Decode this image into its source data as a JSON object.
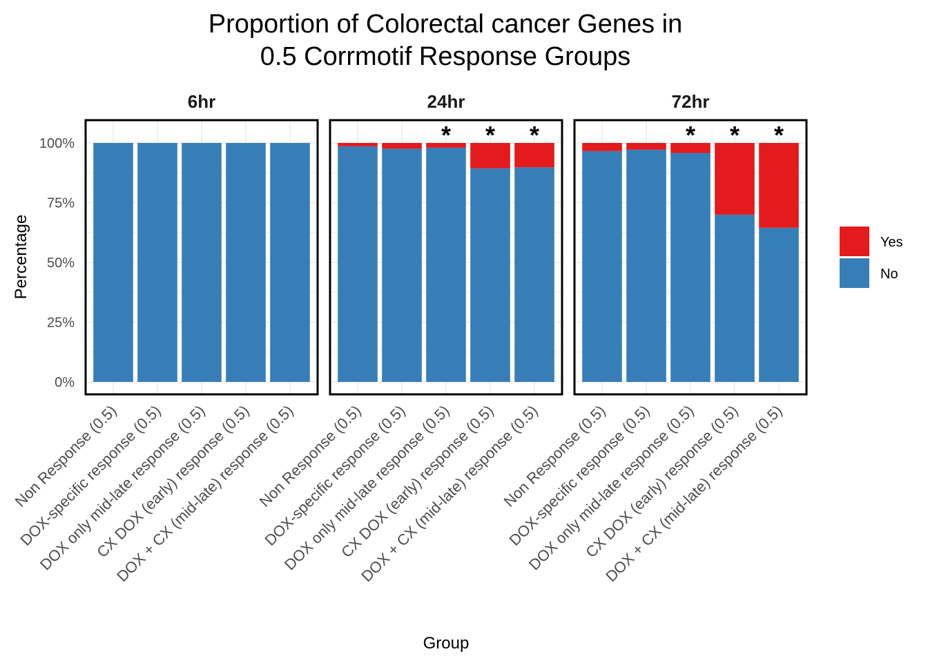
{
  "chart_data": {
    "type": "bar",
    "stacked": true,
    "title": "Proportion of Colorectal cancer Genes in\n0.5 Corrmotif Response Groups",
    "title_lines": [
      "Proportion of Colorectal cancer Genes in",
      "0.5 Corrmotif Response Groups"
    ],
    "xlabel": "Group",
    "ylabel": "Percentage",
    "ylim": [
      0,
      100
    ],
    "yticks": [
      0,
      25,
      50,
      75,
      100
    ],
    "ytick_labels": [
      "0%",
      "25%",
      "50%",
      "75%",
      "100%"
    ],
    "grid": true,
    "legend": {
      "position": "right",
      "entries": [
        {
          "name": "Yes",
          "color": "#E41A1C"
        },
        {
          "name": "No",
          "color": "#377EB8"
        }
      ]
    },
    "categories": [
      "Non Response (0.5)",
      "DOX-specific response (0.5)",
      "DOX only mid-late response (0.5)",
      "CX DOX (early) response (0.5)",
      "DOX + CX (mid-late) response (0.5)"
    ],
    "facets": [
      {
        "label": "6hr",
        "series": [
          {
            "name": "No",
            "values": [
              100,
              100,
              100,
              100,
              100
            ]
          },
          {
            "name": "Yes",
            "values": [
              0,
              0,
              0,
              0,
              0
            ]
          }
        ],
        "significant": [
          false,
          false,
          false,
          false,
          false
        ]
      },
      {
        "label": "24hr",
        "series": [
          {
            "name": "No",
            "values": [
              98.6,
              97.6,
              98.0,
              89.4,
              89.8
            ]
          },
          {
            "name": "Yes",
            "values": [
              1.4,
              2.4,
              2.0,
              10.6,
              10.2
            ]
          }
        ],
        "significant": [
          false,
          false,
          true,
          true,
          true
        ]
      },
      {
        "label": "72hr",
        "series": [
          {
            "name": "No",
            "values": [
              96.6,
              97.2,
              95.8,
              70.0,
              64.5
            ]
          },
          {
            "name": "Yes",
            "values": [
              3.4,
              2.8,
              4.2,
              30.0,
              35.5
            ]
          }
        ],
        "significant": [
          false,
          false,
          true,
          true,
          true
        ]
      }
    ],
    "annotation": "*"
  }
}
